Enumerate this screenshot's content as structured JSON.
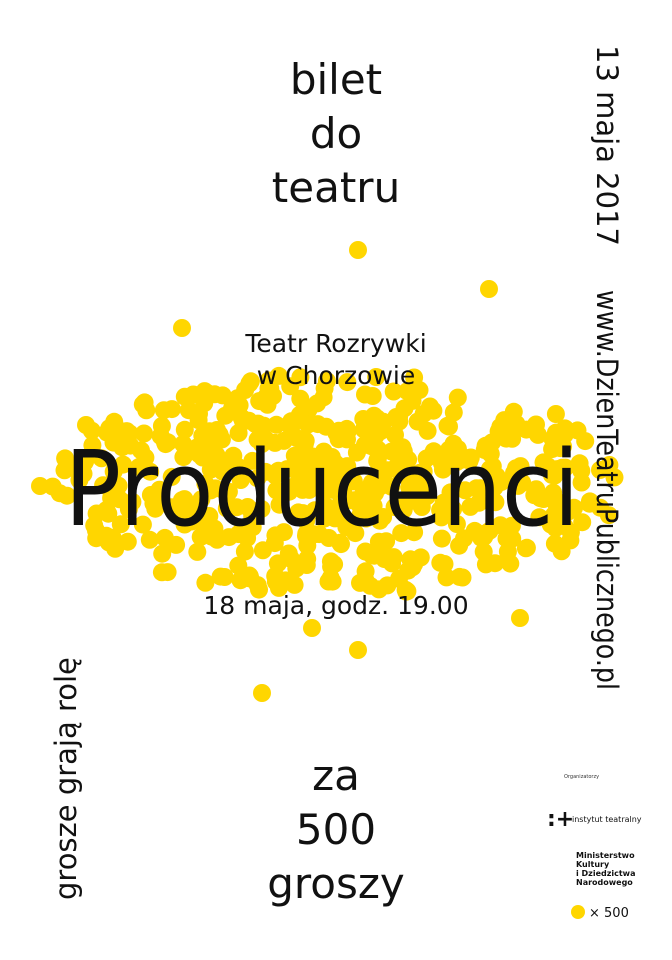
{
  "header": {
    "lines": [
      "bilet",
      "do",
      "teatru"
    ]
  },
  "date": "13 maja 2017",
  "website": "www.DzienTeatruPublicznego.pl",
  "venue": {
    "lines": [
      "Teatr Rozrywki",
      "w Chorzowie"
    ]
  },
  "title": "Producenci",
  "show_time": "18 maja, godz. 19.00",
  "side_slogan": "grosze grają rolę",
  "price": {
    "lines": [
      "za",
      "500",
      "groszy"
    ]
  },
  "sponsors": {
    "caption": "Organizatorzy",
    "institute": "instytut teatralny",
    "ministry": [
      "Ministerstwo",
      "Kultury",
      "i Dziedzictwa",
      "Narodowego"
    ]
  },
  "dot_legend": "× 500"
}
